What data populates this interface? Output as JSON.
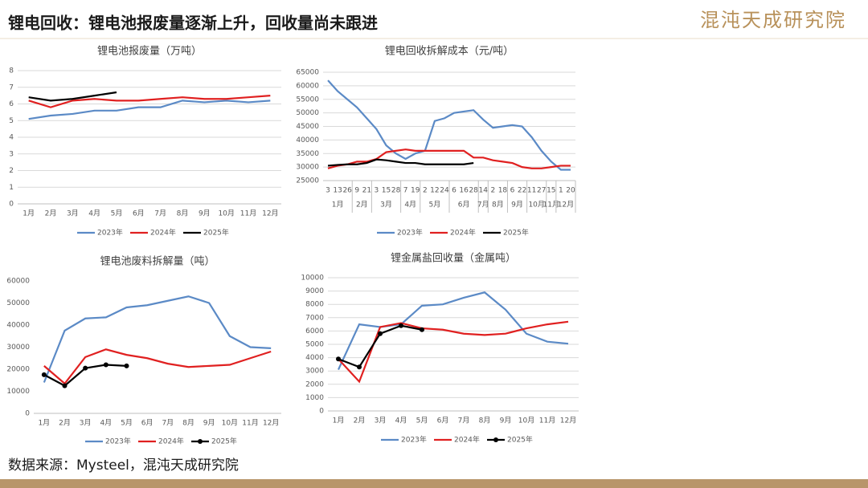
{
  "title": "锂电回收：锂电池报废量逐渐上升，回收量尚未跟进",
  "logo": "混沌天成研究院",
  "source": "数据来源：Mysteel，混沌天成研究院",
  "chart_data": [
    {
      "type": "line",
      "title": "锂电池报废量（万吨）",
      "categories": [
        "1月",
        "2月",
        "3月",
        "4月",
        "5月",
        "6月",
        "7月",
        "8月",
        "9月",
        "10月",
        "11月",
        "12月"
      ],
      "ylim": [
        0,
        8
      ],
      "yticks": [
        0,
        1,
        2,
        3,
        4,
        5,
        6,
        7,
        8
      ],
      "grid": true,
      "series": [
        {
          "name": "2023年",
          "color": "#5b8ac6",
          "values": [
            5.1,
            5.3,
            5.4,
            5.6,
            5.6,
            5.8,
            5.8,
            6.2,
            6.1,
            6.2,
            6.1,
            6.2
          ]
        },
        {
          "name": "2024年",
          "color": "#e02020",
          "values": [
            6.2,
            5.8,
            6.2,
            6.3,
            6.2,
            6.2,
            6.3,
            6.4,
            6.3,
            6.3,
            6.4,
            6.5
          ]
        },
        {
          "name": "2025年",
          "color": "#000000",
          "values": [
            6.4,
            6.2,
            6.3,
            6.5,
            6.7,
            null,
            null,
            null,
            null,
            null,
            null,
            null
          ]
        }
      ]
    },
    {
      "type": "line",
      "title": "锂电回收拆解成本（元/吨）",
      "categories": [
        "3",
        "13",
        "26",
        "9",
        "21",
        "3",
        "15",
        "28",
        "7",
        "19",
        "2",
        "12",
        "24",
        "6",
        "16",
        "28",
        "14",
        "2",
        "18",
        "6",
        "22",
        "11",
        "27",
        "15",
        "1",
        "20"
      ],
      "groups": [
        {
          "label": "1月",
          "count": 3
        },
        {
          "label": "2月",
          "count": 2
        },
        {
          "label": "3月",
          "count": 3
        },
        {
          "label": "4月",
          "count": 2
        },
        {
          "label": "5月",
          "count": 3
        },
        {
          "label": "6月",
          "count": 3
        },
        {
          "label": "7月",
          "count": 1
        },
        {
          "label": "8月",
          "count": 2
        },
        {
          "label": "9月",
          "count": 2
        },
        {
          "label": "10月",
          "count": 2
        },
        {
          "label": "11月",
          "count": 1
        },
        {
          "label": "12月",
          "count": 2
        }
      ],
      "ylim": [
        25000,
        65000
      ],
      "yticks": [
        25000,
        30000,
        35000,
        40000,
        45000,
        50000,
        55000,
        60000,
        65000
      ],
      "grid": true,
      "series": [
        {
          "name": "2023年",
          "color": "#5b8ac6",
          "values": [
            62000,
            58000,
            55000,
            52000,
            48000,
            44000,
            38000,
            35000,
            33000,
            35000,
            36000,
            47000,
            48000,
            50000,
            50500,
            51000,
            47500,
            44500,
            45000,
            45500,
            45000,
            41000,
            36000,
            32000,
            29000,
            29000
          ]
        },
        {
          "name": "2024年",
          "color": "#e02020",
          "values": [
            29500,
            30500,
            31000,
            32000,
            32000,
            33000,
            35500,
            36000,
            36500,
            36000,
            36000,
            36000,
            36000,
            36000,
            36000,
            33500,
            33500,
            32500,
            32000,
            31500,
            30000,
            29500,
            29500,
            30000,
            30500,
            30500
          ]
        },
        {
          "name": "2025年",
          "color": "#000000",
          "values": [
            30500,
            30800,
            31000,
            31000,
            31500,
            32800,
            32500,
            32000,
            31500,
            31500,
            31000,
            31000,
            31000,
            31000,
            31000,
            31500,
            null,
            null,
            null,
            null,
            null,
            null,
            null,
            null,
            null,
            null
          ]
        }
      ]
    },
    {
      "type": "line",
      "title": "锂电池废料拆解量（吨）",
      "categories": [
        "1月",
        "2月",
        "3月",
        "4月",
        "5月",
        "6月",
        "7月",
        "8月",
        "9月",
        "10月",
        "11月",
        "12月"
      ],
      "ylim": [
        0,
        60000
      ],
      "yticks": [
        0,
        10000,
        20000,
        30000,
        40000,
        50000,
        60000
      ],
      "grid": false,
      "series": [
        {
          "name": "2023年",
          "color": "#5b8ac6",
          "values": [
            14000,
            37500,
            43000,
            43500,
            48000,
            49000,
            51000,
            53000,
            50000,
            35000,
            30000,
            29500
          ]
        },
        {
          "name": "2024年",
          "color": "#e02020",
          "values": [
            21500,
            13500,
            25500,
            29000,
            26500,
            25000,
            22500,
            21000,
            21500,
            22000,
            25000,
            28000
          ]
        },
        {
          "name": "2025年",
          "color": "#000000",
          "marker": true,
          "values": [
            17500,
            12500,
            20500,
            22000,
            21500,
            null,
            null,
            null,
            null,
            null,
            null,
            null
          ]
        }
      ]
    },
    {
      "type": "line",
      "title": "锂金属盐回收量（金属吨）",
      "categories": [
        "1月",
        "2月",
        "3月",
        "4月",
        "5月",
        "6月",
        "7月",
        "8月",
        "9月",
        "10月",
        "11月",
        "12月"
      ],
      "ylim": [
        0,
        10000
      ],
      "yticks": [
        0,
        1000,
        2000,
        3000,
        4000,
        5000,
        6000,
        7000,
        8000,
        9000,
        10000
      ],
      "grid": true,
      "series": [
        {
          "name": "2023年",
          "color": "#5b8ac6",
          "values": [
            3100,
            6500,
            6300,
            6500,
            7900,
            8000,
            8500,
            8900,
            7600,
            5800,
            5200,
            5050
          ]
        },
        {
          "name": "2024年",
          "color": "#e02020",
          "values": [
            3900,
            2200,
            6300,
            6600,
            6200,
            6100,
            5800,
            5700,
            5800,
            6200,
            6500,
            6700
          ]
        },
        {
          "name": "2025年",
          "color": "#000000",
          "marker": true,
          "values": [
            3900,
            3300,
            5800,
            6400,
            6100,
            null,
            null,
            null,
            null,
            null,
            null,
            null
          ]
        }
      ]
    }
  ]
}
